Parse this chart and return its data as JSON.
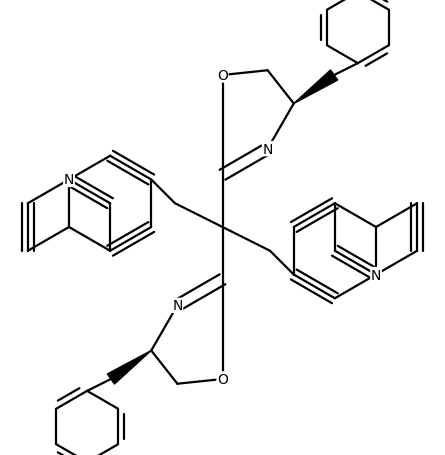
{
  "bg_color": "#ffffff",
  "line_color": "#000000",
  "line_width": 1.6,
  "font_size": 10,
  "fig_width": 4.45,
  "fig_height": 4.56,
  "xlim": [
    -4.5,
    4.5
  ],
  "ylim": [
    -4.8,
    4.8
  ]
}
